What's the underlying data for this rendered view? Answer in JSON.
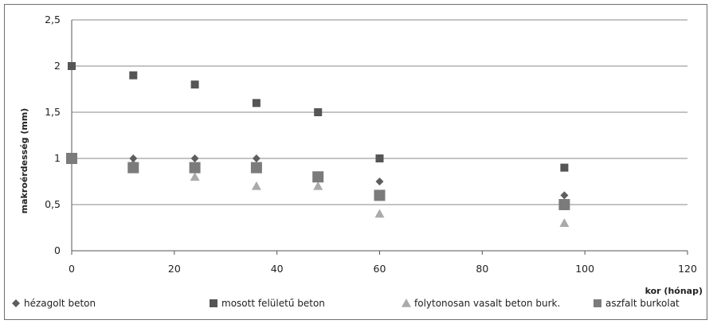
{
  "chart_data": {
    "type": "scatter",
    "title": "",
    "xlabel": "kor (hónap)",
    "ylabel": "makroérdesség (mm)",
    "xlim": [
      0,
      120
    ],
    "ylim": [
      0,
      2.5
    ],
    "x_ticks": [
      "0",
      "20",
      "40",
      "60",
      "80",
      "100",
      "120"
    ],
    "y_ticks": [
      "0",
      "0,5",
      "1",
      "1,5",
      "2",
      "2,5"
    ],
    "grid": "horizontal",
    "legend_position": "bottom",
    "series": [
      {
        "name": "hézagolt beton",
        "marker": "diamond",
        "color": "#5e5e5e",
        "x": [
          0,
          12,
          24,
          36,
          48,
          60,
          96
        ],
        "y": [
          1.0,
          1.0,
          1.0,
          1.0,
          0.8,
          0.75,
          0.6
        ]
      },
      {
        "name": "mosott felületű beton",
        "marker": "square",
        "color": "#555555",
        "x": [
          0,
          12,
          24,
          36,
          48,
          60,
          96
        ],
        "y": [
          2.0,
          1.9,
          1.8,
          1.6,
          1.5,
          1.0,
          0.9
        ]
      },
      {
        "name": "folytonosan vasalt beton burk.",
        "marker": "triangle",
        "color": "#aaaaaa",
        "x": [
          0,
          12,
          24,
          36,
          48,
          60,
          96
        ],
        "y": [
          1.0,
          0.95,
          0.8,
          0.7,
          0.7,
          0.4,
          0.3
        ]
      },
      {
        "name": "aszfalt burkolat",
        "marker": "big-square",
        "color": "#7b7b7b",
        "x": [
          0,
          12,
          24,
          36,
          48,
          60,
          96
        ],
        "y": [
          1.0,
          0.9,
          0.9,
          0.9,
          0.8,
          0.6,
          0.5
        ]
      }
    ]
  }
}
